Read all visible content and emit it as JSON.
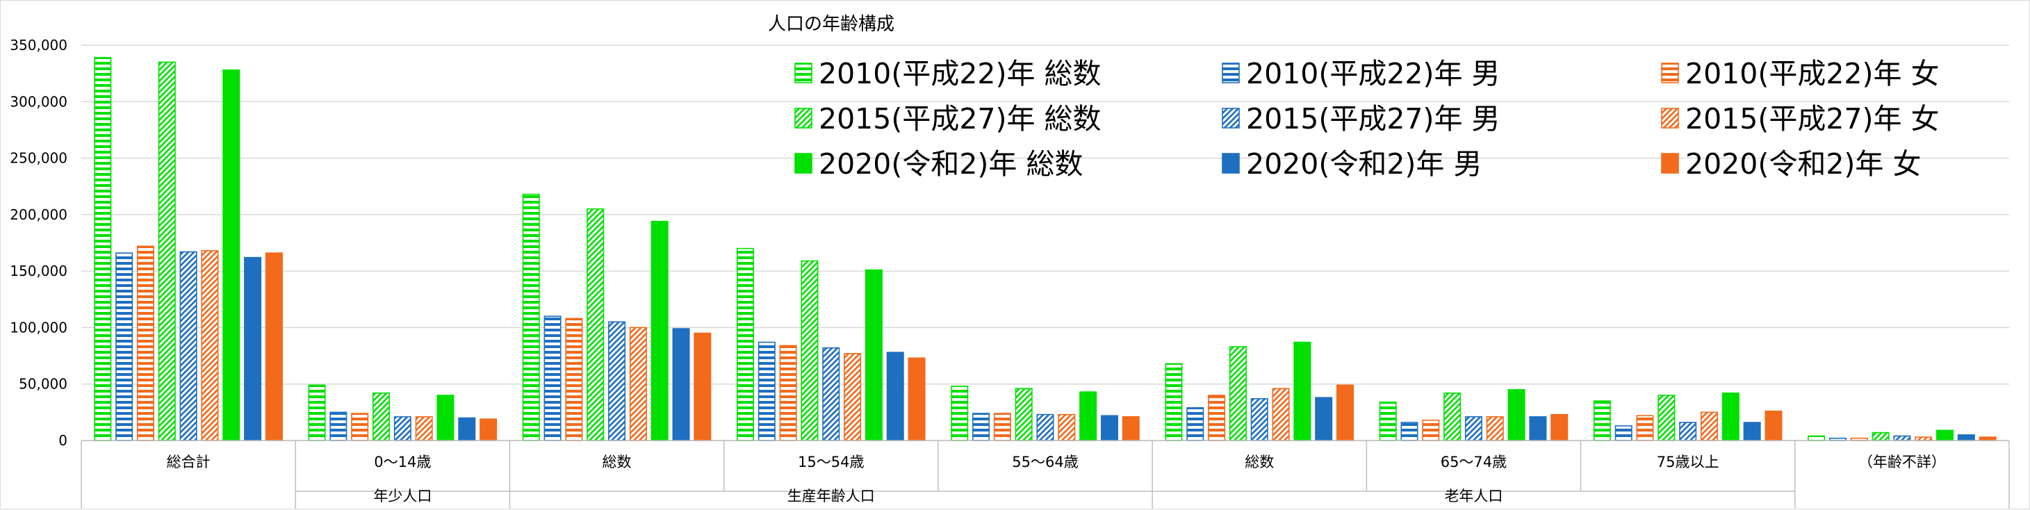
{
  "chart_data": {
    "type": "bar",
    "title": "人口の年齢構成",
    "xlabel": "",
    "ylabel": "",
    "ylim": [
      0,
      350000
    ],
    "yticks": [
      0,
      50000,
      100000,
      150000,
      200000,
      250000,
      300000,
      350000
    ],
    "ytick_labels": [
      "0",
      "50,000",
      "100,000",
      "150,000",
      "200,000",
      "250,000",
      "300,000",
      "350,000"
    ],
    "grid": true,
    "legend_position": "top-right",
    "categories": [
      "総合計",
      "0～14歳",
      "総数",
      "15～54歳",
      "55～64歳",
      "総数",
      "65～74歳",
      "75歳以上",
      "（年齢不詳）"
    ],
    "groups": [
      {
        "label": "年少人口",
        "start": 1,
        "end": 1
      },
      {
        "label": "生産年齢人口",
        "start": 2,
        "end": 4
      },
      {
        "label": "老年人口",
        "start": 5,
        "end": 7
      }
    ],
    "series": [
      {
        "name": "2010(平成22)年  総数",
        "color": "#00e000",
        "pattern": "horizontal",
        "values": [
          339000,
          49000,
          218000,
          170000,
          48000,
          68000,
          34000,
          35000,
          4000
        ]
      },
      {
        "name": "2010(平成22)年  男",
        "color": "#1e6fc0",
        "pattern": "horizontal",
        "values": [
          166000,
          25000,
          110000,
          87000,
          24000,
          29000,
          16000,
          13000,
          2000
        ]
      },
      {
        "name": "2010(平成22)年  女",
        "color": "#f26a1b",
        "pattern": "horizontal",
        "values": [
          172000,
          24000,
          108000,
          84000,
          24000,
          40000,
          18000,
          22000,
          2000
        ]
      },
      {
        "name": "2015(平成27)年  総数",
        "color": "#00e000",
        "pattern": "diagonal",
        "values": [
          335000,
          42000,
          205000,
          159000,
          46000,
          83000,
          42000,
          40000,
          7000
        ]
      },
      {
        "name": "2015(平成27)年  男",
        "color": "#1e6fc0",
        "pattern": "diagonal",
        "values": [
          167000,
          21000,
          105000,
          82000,
          23000,
          37000,
          21000,
          16000,
          4000
        ]
      },
      {
        "name": "2015(平成27)年  女",
        "color": "#f26a1b",
        "pattern": "diagonal",
        "values": [
          168000,
          21000,
          100000,
          77000,
          23000,
          46000,
          21000,
          25000,
          3000
        ]
      },
      {
        "name": "2020(令和2)年  総数",
        "color": "#00e000",
        "pattern": "solid",
        "values": [
          328000,
          40000,
          194000,
          151000,
          43000,
          87000,
          45000,
          42000,
          9000
        ]
      },
      {
        "name": "2020(令和2)年  男",
        "color": "#1e6fc0",
        "pattern": "solid",
        "values": [
          162000,
          20000,
          99000,
          78000,
          22000,
          38000,
          21000,
          16000,
          5000
        ]
      },
      {
        "name": "2020(令和2)年  女",
        "color": "#f26a1b",
        "pattern": "solid",
        "values": [
          166000,
          19000,
          95000,
          73000,
          21000,
          49000,
          23000,
          26000,
          3000
        ]
      }
    ]
  }
}
